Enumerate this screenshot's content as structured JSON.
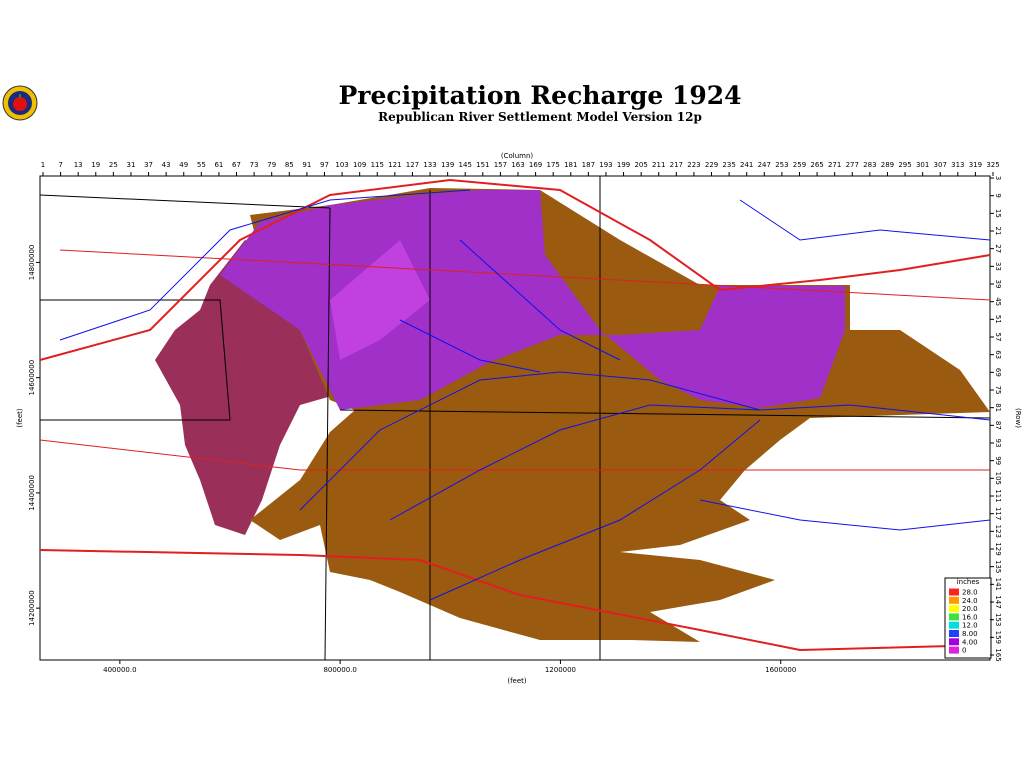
{
  "map": {
    "title": "Precipitation Recharge 1924",
    "subtitle": "Republican River Settlement Model Version 12p",
    "column_label": "(Column)",
    "columns": [
      1,
      7,
      13,
      19,
      25,
      31,
      37,
      43,
      49,
      55,
      61,
      67,
      73,
      79,
      85,
      91,
      97,
      103,
      109,
      115,
      121,
      127,
      133,
      139,
      145,
      151,
      157,
      163,
      169,
      175,
      181,
      187,
      193,
      199,
      205,
      211,
      217,
      223,
      229,
      235,
      241,
      247,
      253,
      259,
      265,
      271,
      277,
      283,
      289,
      295,
      301,
      307,
      313,
      319,
      325
    ],
    "column_lim": [
      1,
      325
    ],
    "row_label": "(Row)",
    "rows": [
      3,
      9,
      15,
      21,
      27,
      33,
      39,
      45,
      51,
      57,
      63,
      69,
      75,
      81,
      87,
      93,
      99,
      105,
      111,
      117,
      123,
      129,
      135,
      141,
      147,
      153,
      159,
      165
    ],
    "row_lim": [
      3,
      165
    ],
    "x_label": "(feet)",
    "x_lim": [
      255000,
      1980000
    ],
    "x_ticks": [
      {
        "value": 400000,
        "label": "400000.0"
      },
      {
        "value": 800000,
        "label": "800000.0"
      },
      1200000,
      1600000
    ],
    "y_label": "(feet)",
    "y_lim": [
      14110000,
      14950000
    ],
    "y_ticks": [
      14800000,
      14600000,
      14400000,
      14200000
    ],
    "legend": {
      "title": "inches",
      "entries": [
        {
          "label": "28.0",
          "color": "#ff2020"
        },
        {
          "label": "24.0",
          "color": "#ff9a00"
        },
        {
          "label": "20.0",
          "color": "#ffff00"
        },
        {
          "label": "16.0",
          "color": "#40e040"
        },
        {
          "label": "12.0",
          "color": "#00e0e0"
        },
        {
          "label": "8.00",
          "color": "#2040ff"
        },
        {
          "label": "4.00",
          "color": "#a000e0"
        },
        {
          "label": "0",
          "color": "#e020e0"
        }
      ]
    }
  }
}
